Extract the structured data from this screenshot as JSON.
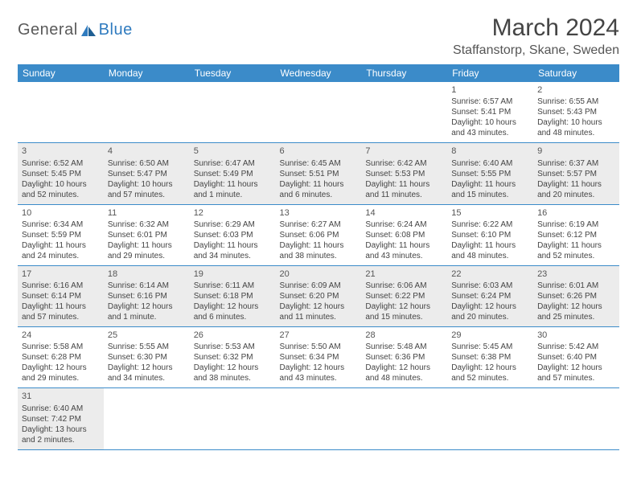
{
  "logo": {
    "text1": "General",
    "text2": "Blue"
  },
  "title": "March 2024",
  "location": "Staffanstorp, Skane, Sweden",
  "colors": {
    "header_bg": "#3b8bc9",
    "header_text": "#ffffff",
    "row_alt_bg": "#ececec",
    "row_bg": "#ffffff",
    "border": "#3b8bc9",
    "text": "#444444",
    "logo_gray": "#5a5a5a",
    "logo_blue": "#2f7bbf"
  },
  "typography": {
    "title_fontsize": 30,
    "location_fontsize": 16,
    "header_fontsize": 12,
    "cell_fontsize": 10,
    "font_family": "Arial"
  },
  "day_headers": [
    "Sunday",
    "Monday",
    "Tuesday",
    "Wednesday",
    "Thursday",
    "Friday",
    "Saturday"
  ],
  "first_weekday": 5,
  "days_in_month": 31,
  "days": {
    "1": {
      "sunrise": "6:57 AM",
      "sunset": "5:41 PM",
      "daylight": "10 hours and 43 minutes."
    },
    "2": {
      "sunrise": "6:55 AM",
      "sunset": "5:43 PM",
      "daylight": "10 hours and 48 minutes."
    },
    "3": {
      "sunrise": "6:52 AM",
      "sunset": "5:45 PM",
      "daylight": "10 hours and 52 minutes."
    },
    "4": {
      "sunrise": "6:50 AM",
      "sunset": "5:47 PM",
      "daylight": "10 hours and 57 minutes."
    },
    "5": {
      "sunrise": "6:47 AM",
      "sunset": "5:49 PM",
      "daylight": "11 hours and 1 minute."
    },
    "6": {
      "sunrise": "6:45 AM",
      "sunset": "5:51 PM",
      "daylight": "11 hours and 6 minutes."
    },
    "7": {
      "sunrise": "6:42 AM",
      "sunset": "5:53 PM",
      "daylight": "11 hours and 11 minutes."
    },
    "8": {
      "sunrise": "6:40 AM",
      "sunset": "5:55 PM",
      "daylight": "11 hours and 15 minutes."
    },
    "9": {
      "sunrise": "6:37 AM",
      "sunset": "5:57 PM",
      "daylight": "11 hours and 20 minutes."
    },
    "10": {
      "sunrise": "6:34 AM",
      "sunset": "5:59 PM",
      "daylight": "11 hours and 24 minutes."
    },
    "11": {
      "sunrise": "6:32 AM",
      "sunset": "6:01 PM",
      "daylight": "11 hours and 29 minutes."
    },
    "12": {
      "sunrise": "6:29 AM",
      "sunset": "6:03 PM",
      "daylight": "11 hours and 34 minutes."
    },
    "13": {
      "sunrise": "6:27 AM",
      "sunset": "6:06 PM",
      "daylight": "11 hours and 38 minutes."
    },
    "14": {
      "sunrise": "6:24 AM",
      "sunset": "6:08 PM",
      "daylight": "11 hours and 43 minutes."
    },
    "15": {
      "sunrise": "6:22 AM",
      "sunset": "6:10 PM",
      "daylight": "11 hours and 48 minutes."
    },
    "16": {
      "sunrise": "6:19 AM",
      "sunset": "6:12 PM",
      "daylight": "11 hours and 52 minutes."
    },
    "17": {
      "sunrise": "6:16 AM",
      "sunset": "6:14 PM",
      "daylight": "11 hours and 57 minutes."
    },
    "18": {
      "sunrise": "6:14 AM",
      "sunset": "6:16 PM",
      "daylight": "12 hours and 1 minute."
    },
    "19": {
      "sunrise": "6:11 AM",
      "sunset": "6:18 PM",
      "daylight": "12 hours and 6 minutes."
    },
    "20": {
      "sunrise": "6:09 AM",
      "sunset": "6:20 PM",
      "daylight": "12 hours and 11 minutes."
    },
    "21": {
      "sunrise": "6:06 AM",
      "sunset": "6:22 PM",
      "daylight": "12 hours and 15 minutes."
    },
    "22": {
      "sunrise": "6:03 AM",
      "sunset": "6:24 PM",
      "daylight": "12 hours and 20 minutes."
    },
    "23": {
      "sunrise": "6:01 AM",
      "sunset": "6:26 PM",
      "daylight": "12 hours and 25 minutes."
    },
    "24": {
      "sunrise": "5:58 AM",
      "sunset": "6:28 PM",
      "daylight": "12 hours and 29 minutes."
    },
    "25": {
      "sunrise": "5:55 AM",
      "sunset": "6:30 PM",
      "daylight": "12 hours and 34 minutes."
    },
    "26": {
      "sunrise": "5:53 AM",
      "sunset": "6:32 PM",
      "daylight": "12 hours and 38 minutes."
    },
    "27": {
      "sunrise": "5:50 AM",
      "sunset": "6:34 PM",
      "daylight": "12 hours and 43 minutes."
    },
    "28": {
      "sunrise": "5:48 AM",
      "sunset": "6:36 PM",
      "daylight": "12 hours and 48 minutes."
    },
    "29": {
      "sunrise": "5:45 AM",
      "sunset": "6:38 PM",
      "daylight": "12 hours and 52 minutes."
    },
    "30": {
      "sunrise": "5:42 AM",
      "sunset": "6:40 PM",
      "daylight": "12 hours and 57 minutes."
    },
    "31": {
      "sunrise": "6:40 AM",
      "sunset": "7:42 PM",
      "daylight": "13 hours and 2 minutes."
    }
  },
  "labels": {
    "sunrise": "Sunrise:",
    "sunset": "Sunset:",
    "daylight": "Daylight:"
  }
}
